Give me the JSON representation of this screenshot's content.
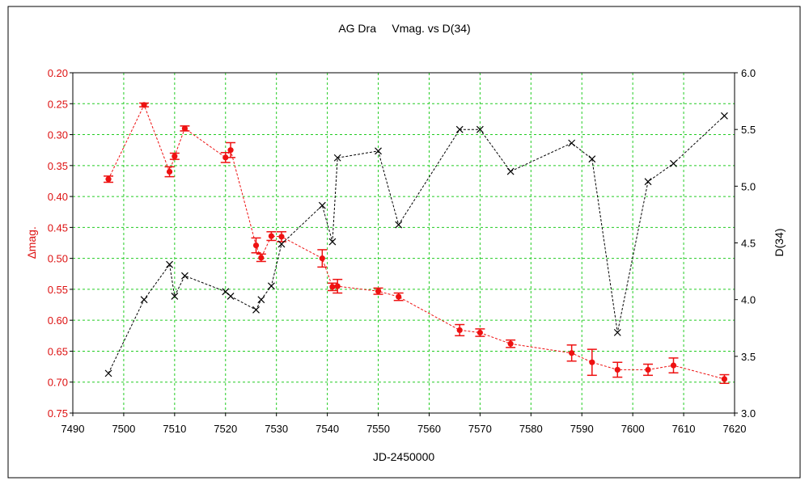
{
  "chart_data": {
    "type": "scatter",
    "title": "AG Dra     Vmag. vs D(34)",
    "xlabel": "JD-2450000",
    "ylabel_left": "∆mag.",
    "ylabel_right": "D(34)",
    "xlim": [
      7490,
      7620
    ],
    "ylim_left": [
      0.2,
      0.75
    ],
    "ylim_left_inverted": true,
    "ylim_right": [
      3.0,
      6.0
    ],
    "x_ticks": [
      "7490",
      "7500",
      "7510",
      "7520",
      "7530",
      "7540",
      "7550",
      "7560",
      "7570",
      "7580",
      "7590",
      "7600",
      "7610",
      "7620"
    ],
    "y_left_ticks": [
      "0.20",
      "0.25",
      "0.30",
      "0.35",
      "0.40",
      "0.45",
      "0.50",
      "0.55",
      "0.60",
      "0.65",
      "0.70",
      "0.75"
    ],
    "y_right_ticks": [
      "3.0",
      "3.5",
      "4.0",
      "4.5",
      "5.0",
      "5.5",
      "6.0"
    ],
    "grid": true,
    "series": [
      {
        "axis": "left",
        "color": "#ee1111",
        "marker": "circle",
        "line": "dashed",
        "points": [
          {
            "x": 7497,
            "y": 0.372,
            "err": 0.005
          },
          {
            "x": 7504,
            "y": 0.252,
            "err": 0.003
          },
          {
            "x": 7509,
            "y": 0.36,
            "err": 0.008
          },
          {
            "x": 7510,
            "y": 0.335,
            "err": 0.005
          },
          {
            "x": 7512,
            "y": 0.29,
            "err": 0.004
          },
          {
            "x": 7520,
            "y": 0.337,
            "err": 0.008
          },
          {
            "x": 7521,
            "y": 0.325,
            "err": 0.012
          },
          {
            "x": 7526,
            "y": 0.479,
            "err": 0.012
          },
          {
            "x": 7527,
            "y": 0.499,
            "err": 0.006
          },
          {
            "x": 7529,
            "y": 0.464,
            "err": 0.007
          },
          {
            "x": 7531,
            "y": 0.465,
            "err": 0.008
          },
          {
            "x": 7539,
            "y": 0.5,
            "err": 0.014
          },
          {
            "x": 7541,
            "y": 0.546,
            "err": 0.006
          },
          {
            "x": 7542,
            "y": 0.545,
            "err": 0.011
          },
          {
            "x": 7550,
            "y": 0.553,
            "err": 0.005
          },
          {
            "x": 7554,
            "y": 0.562,
            "err": 0.006
          },
          {
            "x": 7566,
            "y": 0.616,
            "err": 0.009
          },
          {
            "x": 7570,
            "y": 0.62,
            "err": 0.006
          },
          {
            "x": 7576,
            "y": 0.638,
            "err": 0.006
          },
          {
            "x": 7588,
            "y": 0.653,
            "err": 0.013
          },
          {
            "x": 7592,
            "y": 0.668,
            "err": 0.021
          },
          {
            "x": 7597,
            "y": 0.68,
            "err": 0.012
          },
          {
            "x": 7603,
            "y": 0.68,
            "err": 0.009
          },
          {
            "x": 7608,
            "y": 0.673,
            "err": 0.012
          },
          {
            "x": 7618,
            "y": 0.695,
            "err": 0.007
          }
        ]
      },
      {
        "axis": "right",
        "color": "#000000",
        "marker": "x",
        "line": "dashed",
        "points": [
          {
            "x": 7497,
            "y": 3.35
          },
          {
            "x": 7504,
            "y": 4.0
          },
          {
            "x": 7509,
            "y": 4.31
          },
          {
            "x": 7510,
            "y": 4.03
          },
          {
            "x": 7512,
            "y": 4.21
          },
          {
            "x": 7520,
            "y": 4.07
          },
          {
            "x": 7521,
            "y": 4.03
          },
          {
            "x": 7526,
            "y": 3.91
          },
          {
            "x": 7527,
            "y": 4.0
          },
          {
            "x": 7529,
            "y": 4.12
          },
          {
            "x": 7531,
            "y": 4.49
          },
          {
            "x": 7539,
            "y": 4.83
          },
          {
            "x": 7541,
            "y": 4.51
          },
          {
            "x": 7542,
            "y": 5.25
          },
          {
            "x": 7550,
            "y": 5.31
          },
          {
            "x": 7554,
            "y": 4.66
          },
          {
            "x": 7566,
            "y": 5.5
          },
          {
            "x": 7570,
            "y": 5.5
          },
          {
            "x": 7576,
            "y": 5.13
          },
          {
            "x": 7588,
            "y": 5.38
          },
          {
            "x": 7592,
            "y": 5.24
          },
          {
            "x": 7597,
            "y": 3.71
          },
          {
            "x": 7603,
            "y": 5.04
          },
          {
            "x": 7608,
            "y": 5.2
          },
          {
            "x": 7618,
            "y": 5.62
          }
        ]
      }
    ]
  }
}
